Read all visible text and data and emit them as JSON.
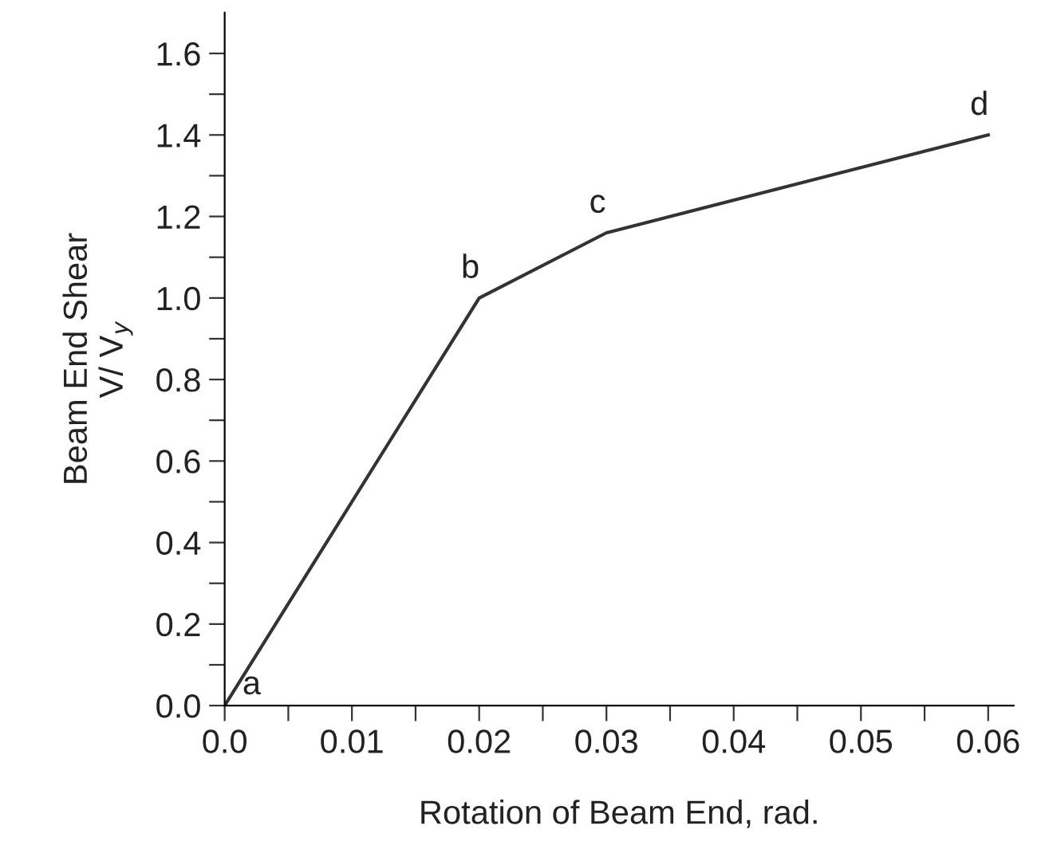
{
  "chart_data": {
    "type": "line",
    "xlabel": "Rotation of Beam End, rad.",
    "ylabel": "Beam End Shear\nV/ V$_{y}$",
    "x": [
      0,
      0.02,
      0.03,
      0.06
    ],
    "values": [
      0,
      1.0,
      1.16,
      1.4
    ],
    "color": "#333333",
    "marker": "none",
    "line_style": "solid",
    "grid": false,
    "xlim": [
      0,
      0.062
    ],
    "ylim": [
      0,
      1.7
    ],
    "xticks": [
      {
        "value": 0,
        "label": "0.0"
      },
      {
        "value": 0.005,
        "label": null
      },
      0.01,
      {
        "value": 0.015,
        "label": null
      },
      0.02,
      {
        "value": 0.025,
        "label": null
      },
      0.03,
      {
        "value": 0.035,
        "label": null
      },
      0.04,
      {
        "value": 0.045,
        "label": null
      },
      0.05,
      {
        "value": 0.055,
        "label": null
      },
      0.06
    ],
    "yticks": [
      {
        "value": 0,
        "label": "0.0"
      },
      {
        "value": 0.1,
        "label": null
      },
      0.2,
      {
        "value": 0.3,
        "label": null
      },
      0.4,
      {
        "value": 0.5,
        "label": null
      },
      0.6,
      {
        "value": 0.7,
        "label": null
      },
      0.8,
      {
        "value": 0.9,
        "label": null
      },
      {
        "value": 1.0,
        "label": "1.0"
      },
      {
        "value": 1.1,
        "label": null
      },
      1.2,
      {
        "value": 1.3,
        "label": null
      },
      1.4,
      {
        "value": 1.5,
        "label": null
      },
      1.6
    ],
    "annotations": [
      {
        "text": "a",
        "x": 0,
        "y": 0
      },
      {
        "text": "b",
        "x": 0.02,
        "y": 1.0
      },
      {
        "text": "c",
        "x": 0.03,
        "y": 1.16
      },
      {
        "text": "d",
        "x": 0.06,
        "y": 1.4
      }
    ]
  }
}
